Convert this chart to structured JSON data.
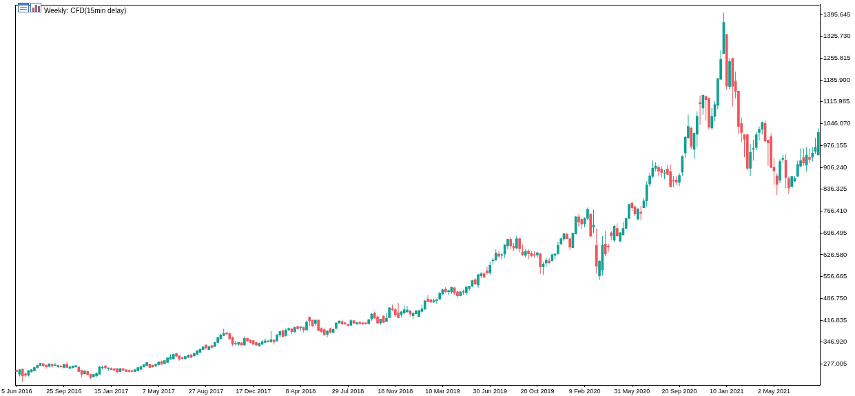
{
  "chart_data": {
    "type": "candlestick",
    "title": "Weekly: CFD(15min delay)",
    "categories": [
      "5 Jun 2016",
      null,
      null,
      null,
      null,
      null,
      null,
      null,
      null,
      null,
      null,
      null,
      null,
      null,
      null,
      null,
      "25 Sep 2016",
      null,
      null,
      null,
      null,
      null,
      null,
      null,
      null,
      null,
      null,
      null,
      null,
      null,
      null,
      null,
      "15 Jan 2017",
      null,
      null,
      null,
      null,
      null,
      null,
      null,
      null,
      null,
      null,
      null,
      null,
      null,
      null,
      null,
      "7 May 2017",
      null,
      null,
      null,
      null,
      null,
      null,
      null,
      null,
      null,
      null,
      null,
      null,
      null,
      null,
      null,
      "27 Aug 2017",
      null,
      null,
      null,
      null,
      null,
      null,
      null,
      null,
      null,
      null,
      null,
      null,
      null,
      null,
      null,
      "17 Dec 2017",
      null,
      null,
      null,
      null,
      null,
      null,
      null,
      null,
      null,
      null,
      null,
      null,
      null,
      null,
      null,
      "8 Apr 2018",
      null,
      null,
      null,
      null,
      null,
      null,
      null,
      null,
      null,
      null,
      null,
      null,
      null,
      null,
      null,
      "29 Jul 2018",
      null,
      null,
      null,
      null,
      null,
      null,
      null,
      null,
      null,
      null,
      null,
      null,
      null,
      null,
      null,
      "18 Nov 2018",
      null,
      null,
      null,
      null,
      null,
      null,
      null,
      null,
      null,
      null,
      null,
      null,
      null,
      null,
      null,
      "10 Mar 2019",
      null,
      null,
      null,
      null,
      null,
      null,
      null,
      null,
      null,
      null,
      null,
      null,
      null,
      null,
      null,
      "30 Jun 2019",
      null,
      null,
      null,
      null,
      null,
      null,
      null,
      null,
      null,
      null,
      null,
      null,
      null,
      null,
      null,
      "20 Oct 2019",
      null,
      null,
      null,
      null,
      null,
      null,
      null,
      null,
      null,
      null,
      null,
      null,
      null,
      null,
      null,
      "9 Feb 2020",
      null,
      null,
      null,
      null,
      null,
      null,
      null,
      null,
      null,
      null,
      null,
      null,
      null,
      null,
      null,
      "31 May 2020",
      null,
      null,
      null,
      null,
      null,
      null,
      null,
      null,
      null,
      null,
      null,
      null,
      null,
      null,
      null,
      "20 Sep 2020",
      null,
      null,
      null,
      null,
      null,
      null,
      null,
      null,
      null,
      null,
      null,
      null,
      null,
      null,
      null,
      "10 Jan 2021",
      null,
      null,
      null,
      null,
      null,
      null,
      null,
      null,
      null,
      null,
      null,
      null,
      null,
      null,
      null,
      "2 May 2021",
      null,
      null,
      null,
      null,
      null,
      null,
      null,
      null,
      null,
      null,
      null,
      null,
      null,
      null,
      null
    ],
    "ohlc": [
      [
        257,
        260,
        252,
        253
      ],
      [
        244,
        261,
        237,
        259
      ],
      [
        260,
        263,
        220,
        239
      ],
      [
        246,
        249,
        236,
        241
      ],
      [
        241,
        257,
        237,
        256
      ],
      [
        252,
        261,
        250,
        259
      ],
      [
        255,
        268,
        253,
        266
      ],
      [
        265,
        275,
        263,
        273
      ],
      [
        272,
        281,
        271,
        279
      ],
      [
        278,
        281,
        268,
        271
      ],
      [
        273,
        276,
        262,
        268
      ],
      [
        269,
        279,
        268,
        278
      ],
      [
        276,
        278,
        265,
        271
      ],
      [
        272,
        281,
        271,
        273
      ],
      [
        268,
        275,
        265,
        272
      ],
      [
        271,
        272,
        266,
        268
      ],
      [
        266,
        278,
        263,
        276
      ],
      [
        276,
        285,
        265,
        266
      ],
      [
        263,
        271,
        260,
        268
      ],
      [
        265,
        272,
        263,
        271
      ],
      [
        268,
        273,
        266,
        272
      ],
      [
        268,
        269,
        252,
        253
      ],
      [
        257,
        259,
        234,
        244
      ],
      [
        246,
        257,
        244,
        255
      ],
      [
        253,
        256,
        241,
        243
      ],
      [
        244,
        246,
        230,
        234
      ],
      [
        236,
        246,
        234,
        244
      ],
      [
        239,
        250,
        236,
        247
      ],
      [
        244,
        271,
        243,
        268
      ],
      [
        265,
        272,
        260,
        267
      ],
      [
        271,
        275,
        260,
        265
      ],
      [
        262,
        266,
        255,
        265
      ],
      [
        263,
        266,
        257,
        259
      ],
      [
        262,
        263,
        256,
        257
      ],
      [
        262,
        265,
        247,
        252
      ],
      [
        253,
        265,
        252,
        262
      ],
      [
        262,
        265,
        255,
        257
      ],
      [
        259,
        260,
        252,
        253
      ],
      [
        257,
        259,
        250,
        253
      ],
      [
        256,
        259,
        249,
        253
      ],
      [
        253,
        262,
        252,
        259
      ],
      [
        256,
        268,
        255,
        266
      ],
      [
        260,
        271,
        259,
        269
      ],
      [
        268,
        276,
        266,
        275
      ],
      [
        272,
        284,
        271,
        282
      ],
      [
        276,
        278,
        265,
        266
      ],
      [
        273,
        275,
        266,
        268
      ],
      [
        271,
        278,
        268,
        276
      ],
      [
        275,
        285,
        273,
        284
      ],
      [
        285,
        288,
        275,
        276
      ],
      [
        278,
        289,
        276,
        288
      ],
      [
        282,
        298,
        281,
        297
      ],
      [
        292,
        308,
        291,
        300
      ],
      [
        294,
        310,
        292,
        308
      ],
      [
        311,
        313,
        300,
        302
      ],
      [
        303,
        305,
        288,
        293
      ],
      [
        297,
        300,
        291,
        294
      ],
      [
        294,
        303,
        291,
        301
      ],
      [
        298,
        308,
        297,
        305
      ],
      [
        307,
        308,
        297,
        298
      ],
      [
        303,
        314,
        300,
        311
      ],
      [
        308,
        322,
        305,
        319
      ],
      [
        314,
        327,
        313,
        324
      ],
      [
        323,
        335,
        322,
        332
      ],
      [
        338,
        340,
        323,
        329
      ],
      [
        323,
        336,
        322,
        333
      ],
      [
        336,
        339,
        327,
        330
      ],
      [
        333,
        348,
        332,
        346
      ],
      [
        346,
        365,
        345,
        362
      ],
      [
        358,
        373,
        356,
        370
      ],
      [
        368,
        390,
        367,
        375
      ],
      [
        377,
        379,
        370,
        373
      ],
      [
        375,
        378,
        354,
        358
      ],
      [
        362,
        365,
        334,
        340
      ],
      [
        341,
        351,
        336,
        343
      ],
      [
        340,
        348,
        334,
        346
      ],
      [
        345,
        346,
        336,
        338
      ],
      [
        338,
        365,
        336,
        359
      ],
      [
        359,
        361,
        348,
        351
      ],
      [
        354,
        356,
        343,
        346
      ],
      [
        352,
        354,
        339,
        340
      ],
      [
        346,
        349,
        336,
        338
      ],
      [
        336,
        346,
        332,
        343
      ],
      [
        340,
        354,
        339,
        349
      ],
      [
        346,
        359,
        345,
        351
      ],
      [
        351,
        355,
        347,
        348
      ],
      [
        348,
        383,
        346,
        355
      ],
      [
        354,
        356,
        339,
        348
      ],
      [
        351,
        374,
        349,
        370
      ],
      [
        370,
        384,
        362,
        381
      ],
      [
        384,
        386,
        364,
        365
      ],
      [
        368,
        391,
        365,
        386
      ],
      [
        386,
        394,
        383,
        391
      ],
      [
        390,
        391,
        373,
        380
      ],
      [
        380,
        397,
        377,
        394
      ],
      [
        397,
        400,
        387,
        390
      ],
      [
        393,
        397,
        383,
        396
      ],
      [
        394,
        397,
        378,
        386
      ],
      [
        386,
        416,
        384,
        412
      ],
      [
        427,
        428,
        397,
        415
      ],
      [
        418,
        419,
        396,
        399
      ],
      [
        407,
        419,
        399,
        418
      ],
      [
        418,
        419,
        383,
        384
      ],
      [
        391,
        394,
        378,
        380
      ],
      [
        387,
        391,
        368,
        371
      ],
      [
        372,
        385,
        363,
        383
      ],
      [
        390,
        393,
        375,
        378
      ],
      [
        378,
        391,
        376,
        388
      ],
      [
        391,
        411,
        389,
        408
      ],
      [
        408,
        416,
        406,
        415
      ],
      [
        413,
        419,
        403,
        405
      ],
      [
        409,
        410,
        403,
        405
      ],
      [
        404,
        406,
        398,
        400
      ],
      [
        401,
        421,
        399,
        416
      ],
      [
        416,
        418,
        405,
        408
      ],
      [
        405,
        412,
        403,
        410
      ],
      [
        410,
        415,
        405,
        406
      ],
      [
        409,
        410,
        403,
        405
      ],
      [
        409,
        410,
        403,
        406
      ],
      [
        406,
        421,
        405,
        419
      ],
      [
        421,
        440,
        415,
        437
      ],
      [
        440,
        445,
        422,
        424
      ],
      [
        428,
        431,
        406,
        408
      ],
      [
        408,
        422,
        403,
        421
      ],
      [
        431,
        432,
        409,
        410
      ],
      [
        413,
        441,
        412,
        424
      ],
      [
        425,
        459,
        424,
        457
      ],
      [
        454,
        467,
        447,
        451
      ],
      [
        451,
        457,
        428,
        434
      ],
      [
        441,
        472,
        424,
        425
      ],
      [
        435,
        448,
        426,
        444
      ],
      [
        440,
        464,
        437,
        451
      ],
      [
        444,
        463,
        440,
        450
      ],
      [
        447,
        451,
        429,
        437
      ],
      [
        431,
        442,
        421,
        440
      ],
      [
        438,
        450,
        437,
        447
      ],
      [
        429,
        451,
        428,
        448
      ],
      [
        445,
        467,
        440,
        454
      ],
      [
        453,
        482,
        450,
        479
      ],
      [
        485,
        498,
        475,
        477
      ],
      [
        483,
        485,
        473,
        475
      ],
      [
        476,
        486,
        472,
        480
      ],
      [
        480,
        486,
        470,
        483
      ],
      [
        485,
        507,
        482,
        504
      ],
      [
        501,
        518,
        499,
        515
      ],
      [
        517,
        523,
        505,
        508
      ],
      [
        508,
        515,
        498,
        512
      ],
      [
        508,
        524,
        502,
        523
      ],
      [
        521,
        523,
        499,
        504
      ],
      [
        508,
        512,
        489,
        495
      ],
      [
        495,
        511,
        494,
        508
      ],
      [
        507,
        515,
        499,
        509
      ],
      [
        505,
        526,
        499,
        524
      ],
      [
        518,
        527,
        511,
        526
      ],
      [
        526,
        547,
        524,
        544
      ],
      [
        547,
        552,
        531,
        533
      ],
      [
        530,
        565,
        521,
        563
      ],
      [
        559,
        571,
        553,
        566
      ],
      [
        566,
        571,
        553,
        555
      ],
      [
        575,
        588,
        563,
        569
      ],
      [
        569,
        604,
        563,
        593
      ],
      [
        607,
        617,
        595,
        610
      ],
      [
        610,
        644,
        607,
        632
      ],
      [
        629,
        639,
        617,
        622
      ],
      [
        625,
        632,
        611,
        626
      ],
      [
        629,
        660,
        616,
        658
      ],
      [
        655,
        678,
        644,
        676
      ],
      [
        676,
        683,
        644,
        655
      ],
      [
        654,
        664,
        639,
        648
      ],
      [
        648,
        687,
        644,
        678
      ],
      [
        678,
        681,
        635,
        646
      ],
      [
        636,
        660,
        623,
        626
      ],
      [
        625,
        644,
        619,
        638
      ],
      [
        639,
        644,
        613,
        630
      ],
      [
        632,
        639,
        619,
        623
      ],
      [
        627,
        639,
        617,
        625
      ],
      [
        626,
        635,
        617,
        633
      ],
      [
        630,
        632,
        565,
        588
      ],
      [
        588,
        604,
        563,
        597
      ],
      [
        600,
        617,
        588,
        609
      ],
      [
        607,
        617,
        598,
        601
      ],
      [
        607,
        630,
        606,
        627
      ],
      [
        625,
        632,
        611,
        629
      ],
      [
        630,
        668,
        627,
        657
      ],
      [
        661,
        681,
        659,
        678
      ],
      [
        677,
        697,
        670,
        694
      ],
      [
        692,
        697,
        677,
        678
      ],
      [
        678,
        681,
        642,
        651
      ],
      [
        649,
        697,
        648,
        696
      ],
      [
        693,
        751,
        692,
        748
      ],
      [
        748,
        756,
        716,
        731
      ],
      [
        740,
        743,
        709,
        725
      ],
      [
        725,
        747,
        715,
        743
      ],
      [
        743,
        778,
        737,
        772
      ],
      [
        757,
        759,
        683,
        686
      ],
      [
        715,
        770,
        696,
        722
      ],
      [
        657,
        711,
        566,
        590
      ],
      [
        559,
        610,
        546,
        606
      ],
      [
        578,
        686,
        560,
        657
      ],
      [
        661,
        703,
        622,
        629
      ],
      [
        655,
        662,
        635,
        651
      ],
      [
        697,
        702,
        673,
        687
      ],
      [
        673,
        722,
        668,
        718
      ],
      [
        711,
        727,
        684,
        687
      ],
      [
        670,
        699,
        668,
        697
      ],
      [
        690,
        731,
        689,
        711
      ],
      [
        711,
        745,
        709,
        743
      ],
      [
        743,
        790,
        741,
        788
      ],
      [
        792,
        796,
        767,
        777
      ],
      [
        780,
        785,
        750,
        757
      ],
      [
        741,
        776,
        737,
        773
      ],
      [
        763,
        783,
        737,
        759
      ],
      [
        777,
        807,
        776,
        799
      ],
      [
        799,
        862,
        780,
        850
      ],
      [
        853,
        888,
        844,
        879
      ],
      [
        877,
        928,
        872,
        904
      ],
      [
        903,
        923,
        893,
        910
      ],
      [
        906,
        911,
        879,
        894
      ],
      [
        901,
        910,
        875,
        890
      ],
      [
        887,
        898,
        869,
        888
      ],
      [
        901,
        914,
        882,
        884
      ],
      [
        893,
        916,
        843,
        844
      ],
      [
        865,
        879,
        843,
        862
      ],
      [
        866,
        878,
        850,
        859
      ],
      [
        858,
        888,
        846,
        881
      ],
      [
        891,
        945,
        879,
        941
      ],
      [
        952,
        1006,
        938,
        1003
      ],
      [
        1000,
        1075,
        998,
        1037
      ],
      [
        1032,
        1037,
        965,
        973
      ],
      [
        964,
        1018,
        933,
        1015
      ],
      [
        1012,
        1085,
        970,
        1070
      ],
      [
        1114,
        1136,
        1043,
        1110
      ],
      [
        1096,
        1140,
        1075,
        1137
      ],
      [
        1133,
        1136,
        1056,
        1123
      ],
      [
        1127,
        1130,
        1027,
        1035
      ],
      [
        1032,
        1096,
        1027,
        1070
      ],
      [
        1069,
        1118,
        1053,
        1107
      ],
      [
        1105,
        1193,
        1092,
        1190
      ],
      [
        1188,
        1281,
        1187,
        1252
      ],
      [
        1270,
        1401,
        1268,
        1370
      ],
      [
        1331,
        1334,
        1155,
        1166
      ],
      [
        1165,
        1255,
        1155,
        1245
      ],
      [
        1255,
        1257,
        1101,
        1166
      ],
      [
        1182,
        1213,
        1127,
        1149
      ],
      [
        1150,
        1151,
        1013,
        1037
      ],
      [
        1047,
        1066,
        987,
        1018
      ],
      [
        1011,
        1012,
        939,
        996
      ],
      [
        1011,
        1012,
        898,
        903
      ],
      [
        903,
        981,
        879,
        954
      ],
      [
        964,
        995,
        928,
        967
      ],
      [
        970,
        1019,
        961,
        1011
      ],
      [
        1018,
        1037,
        992,
        1028
      ],
      [
        1028,
        1053,
        1011,
        1050
      ],
      [
        1047,
        1056,
        986,
        990
      ],
      [
        993,
        995,
        911,
        984
      ],
      [
        1005,
        1015,
        904,
        906
      ],
      [
        907,
        936,
        850,
        895
      ],
      [
        879,
        888,
        818,
        852
      ],
      [
        865,
        932,
        856,
        925
      ],
      [
        932,
        948,
        920,
        936
      ],
      [
        929,
        948,
        840,
        874
      ],
      [
        871,
        877,
        821,
        840
      ],
      [
        844,
        879,
        843,
        877
      ],
      [
        862,
        878,
        861,
        871
      ],
      [
        878,
        928,
        875,
        916
      ],
      [
        910,
        967,
        907,
        928
      ],
      [
        938,
        967,
        911,
        920
      ],
      [
        913,
        971,
        893,
        946
      ],
      [
        938,
        967,
        920,
        932
      ],
      [
        939,
        971,
        925,
        952
      ],
      [
        957,
        1000,
        949,
        971
      ],
      [
        946,
        1031,
        945,
        1018
      ]
    ],
    "colors": [
      "#f0545a",
      "#0ea194",
      "#f0545a",
      "#f0545a",
      "#0ea194",
      "#0ea194",
      "#0ea194",
      "#0ea194",
      "#0ea194",
      "#f0545a",
      "#f0545a",
      "#0ea194",
      "#f0545a",
      "#0ea194",
      "#0ea194",
      "#f0545a",
      "#0ea194",
      "#f0545a",
      "#0ea194",
      "#0ea194",
      "#0ea194",
      "#f0545a",
      "#f0545a",
      "#0ea194",
      "#f0545a",
      "#f0545a",
      "#0ea194",
      "#0ea194",
      "#0ea194",
      "#0ea194",
      "#f0545a",
      "#0ea194",
      "#f0545a",
      "#f0545a",
      "#f0545a",
      "#0ea194",
      "#f0545a",
      "#f0545a",
      "#f0545a",
      "#f0545a",
      "#0ea194",
      "#0ea194",
      "#0ea194",
      "#0ea194",
      "#0ea194",
      "#f0545a",
      "#f0545a",
      "#0ea194",
      "#0ea194",
      "#f0545a",
      "#0ea194",
      "#0ea194",
      "#0ea194",
      "#0ea194",
      "#f0545a",
      "#f0545a",
      "#f0545a",
      "#0ea194",
      "#0ea194",
      "#f0545a",
      "#0ea194",
      "#0ea194",
      "#0ea194",
      "#0ea194",
      "#f0545a",
      "#0ea194",
      "#f0545a",
      "#0ea194",
      "#0ea194",
      "#0ea194",
      "#0ea194",
      "#f0545a",
      "#f0545a",
      "#f0545a",
      "#0ea194",
      "#0ea194",
      "#f0545a",
      "#0ea194",
      "#f0545a",
      "#f0545a",
      "#f0545a",
      "#f0545a",
      "#0ea194",
      "#0ea194",
      "#0ea194",
      "#f0545a",
      "#0ea194",
      "#f0545a",
      "#0ea194",
      "#0ea194",
      "#f0545a",
      "#0ea194",
      "#0ea194",
      "#f0545a",
      "#0ea194",
      "#f0545a",
      "#0ea194",
      "#f0545a",
      "#0ea194",
      "#f0545a",
      "#f0545a",
      "#0ea194",
      "#f0545a",
      "#f0545a",
      "#f0545a",
      "#0ea194",
      "#f0545a",
      "#0ea194",
      "#0ea194",
      "#0ea194",
      "#f0545a",
      "#f0545a",
      "#f0545a",
      "#0ea194",
      "#f0545a",
      "#0ea194",
      "#f0545a",
      "#f0545a",
      "#f0545a",
      "#0ea194",
      "#0ea194",
      "#f0545a",
      "#f0545a",
      "#0ea194",
      "#f0545a",
      "#0ea194",
      "#0ea194",
      "#f0545a",
      "#f0545a",
      "#f0545a",
      "#0ea194",
      "#0ea194",
      "#0ea194",
      "#f0545a",
      "#0ea194",
      "#0ea194",
      "#0ea194",
      "#0ea194",
      "#0ea194",
      "#f0545a",
      "#f0545a",
      "#0ea194",
      "#0ea194",
      "#0ea194",
      "#0ea194",
      "#f0545a",
      "#0ea194",
      "#0ea194",
      "#f0545a",
      "#f0545a",
      "#0ea194",
      "#0ea194",
      "#0ea194",
      "#0ea194",
      "#0ea194",
      "#f0545a",
      "#0ea194",
      "#0ea194",
      "#f0545a",
      "#f0545a",
      "#0ea194",
      "#0ea194",
      "#0ea194",
      "#f0545a",
      "#0ea194",
      "#0ea194",
      "#0ea194",
      "#f0545a",
      "#f0545a",
      "#0ea194",
      "#f0545a",
      "#f0545a",
      "#0ea194",
      "#f0545a",
      "#f0545a",
      "#f0545a",
      "#0ea194",
      "#f0545a",
      "#0ea194",
      "#0ea194",
      "#f0545a",
      "#0ea194",
      "#0ea194",
      "#0ea194",
      "#0ea194",
      "#0ea194",
      "#f0545a",
      "#f0545a",
      "#0ea194",
      "#0ea194",
      "#f0545a",
      "#f0545a",
      "#0ea194",
      "#0ea194",
      "#f0545a",
      "#0ea194",
      "#f0545a",
      "#0ea194",
      "#0ea194",
      "#f0545a",
      "#f0545a",
      "#f0545a",
      "#0ea194",
      "#f0545a",
      "#0ea194",
      "#0ea194",
      "#0ea194",
      "#0ea194",
      "#f0545a",
      "#f0545a",
      "#0ea194",
      "#f0545a",
      "#0ea194",
      "#0ea194",
      "#0ea194",
      "#0ea194",
      "#0ea194",
      "#f0545a",
      "#f0545a",
      "#0ea194",
      "#f0545a",
      "#f0545a",
      "#f0545a",
      "#f0545a",
      "#0ea194",
      "#0ea194",
      "#0ea194",
      "#0ea194",
      "#f0545a",
      "#0ea194",
      "#0ea194",
      "#f0545a",
      "#0ea194",
      "#f0545a",
      "#f0545a",
      "#0ea194",
      "#0ea194",
      "#0ea194",
      "#0ea194",
      "#0ea194",
      "#f0545a",
      "#0ea194",
      "#f0545a",
      "#f0545a",
      "#f0545a",
      "#f0545a",
      "#f0545a",
      "#f0545a",
      "#0ea194",
      "#0ea194",
      "#0ea194",
      "#0ea194",
      "#0ea194",
      "#f0545a",
      "#f0545a",
      "#f0545a",
      "#f0545a",
      "#f0545a",
      "#0ea194",
      "#0ea194",
      "#f0545a",
      "#f0545a",
      "#0ea194",
      "#0ea194",
      "#0ea194",
      "#0ea194",
      "#f0545a",
      "#0ea194",
      "#f0545a",
      "#0ea194",
      "#0ea194",
      "#0ea194"
    ],
    "ylim": [
      210,
      1427
    ],
    "yticks": [
      {
        "value": 277.005,
        "label": "277.005"
      },
      {
        "value": 346.92,
        "label": "346.920"
      },
      {
        "value": 416.835,
        "label": "416.835"
      },
      {
        "value": 486.75,
        "label": "486.750"
      },
      {
        "value": 556.665,
        "label": "556.665"
      },
      {
        "value": 626.58,
        "label": "626.580"
      },
      {
        "value": 696.495,
        "label": "696.495"
      },
      {
        "value": 766.41,
        "label": "766.410"
      },
      {
        "value": 836.325,
        "label": "836.325"
      },
      {
        "value": 906.24,
        "label": "906.240"
      },
      {
        "value": 976.155,
        "label": "976.155"
      },
      {
        "value": 1046.07,
        "label": "1046.070"
      },
      {
        "value": 1115.985,
        "label": "1115.985"
      },
      {
        "value": 1185.9,
        "label": "1185.900"
      },
      {
        "value": 1255.815,
        "label": "1255.815"
      },
      {
        "value": 1325.73,
        "label": "1325.730"
      },
      {
        "value": 1395.645,
        "label": "1395.645"
      }
    ]
  }
}
